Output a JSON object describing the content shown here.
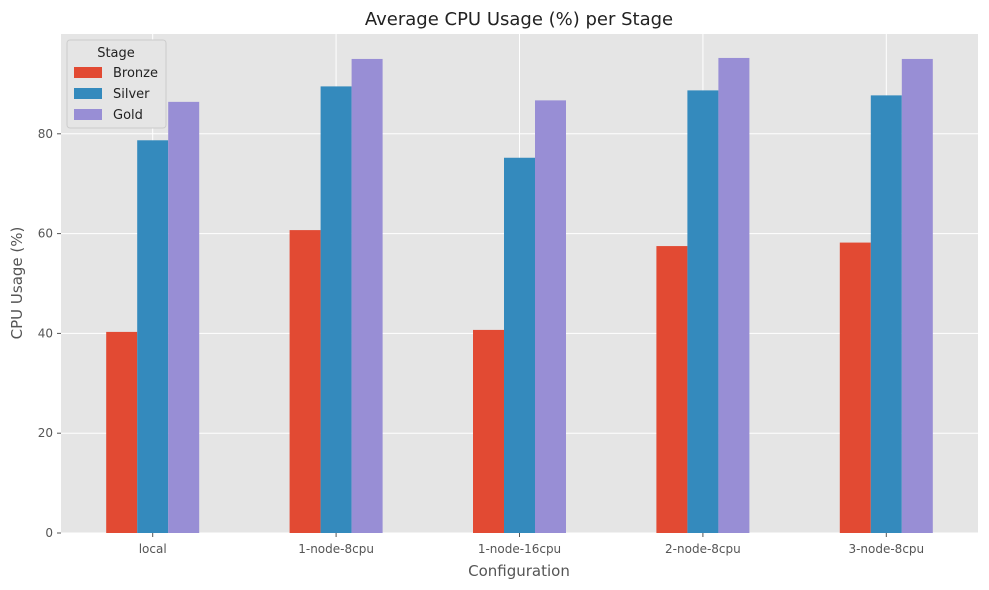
{
  "chart_data": {
    "type": "bar",
    "title": "Average CPU Usage (%) per Stage",
    "xlabel": "Configuration",
    "ylabel": "CPU Usage (%)",
    "categories": [
      "local",
      "1-node-8cpu",
      "1-node-16cpu",
      "2-node-8cpu",
      "3-node-8cpu"
    ],
    "series": [
      {
        "name": "Bronze",
        "color": "#E24A33",
        "values": [
          40.3,
          60.7,
          40.7,
          57.5,
          58.2
        ]
      },
      {
        "name": "Silver",
        "color": "#348ABD",
        "values": [
          78.7,
          89.5,
          75.2,
          88.7,
          87.7
        ]
      },
      {
        "name": "Gold",
        "color": "#988ED5",
        "values": [
          86.4,
          95.0,
          86.7,
          95.2,
          95.0
        ]
      }
    ],
    "ylim": [
      0,
      100
    ],
    "yticks": [
      0,
      20,
      40,
      60,
      80
    ],
    "grid": true,
    "background": "#E5E5E5",
    "legend": {
      "title": "Stage",
      "placement": "top-left"
    }
  }
}
